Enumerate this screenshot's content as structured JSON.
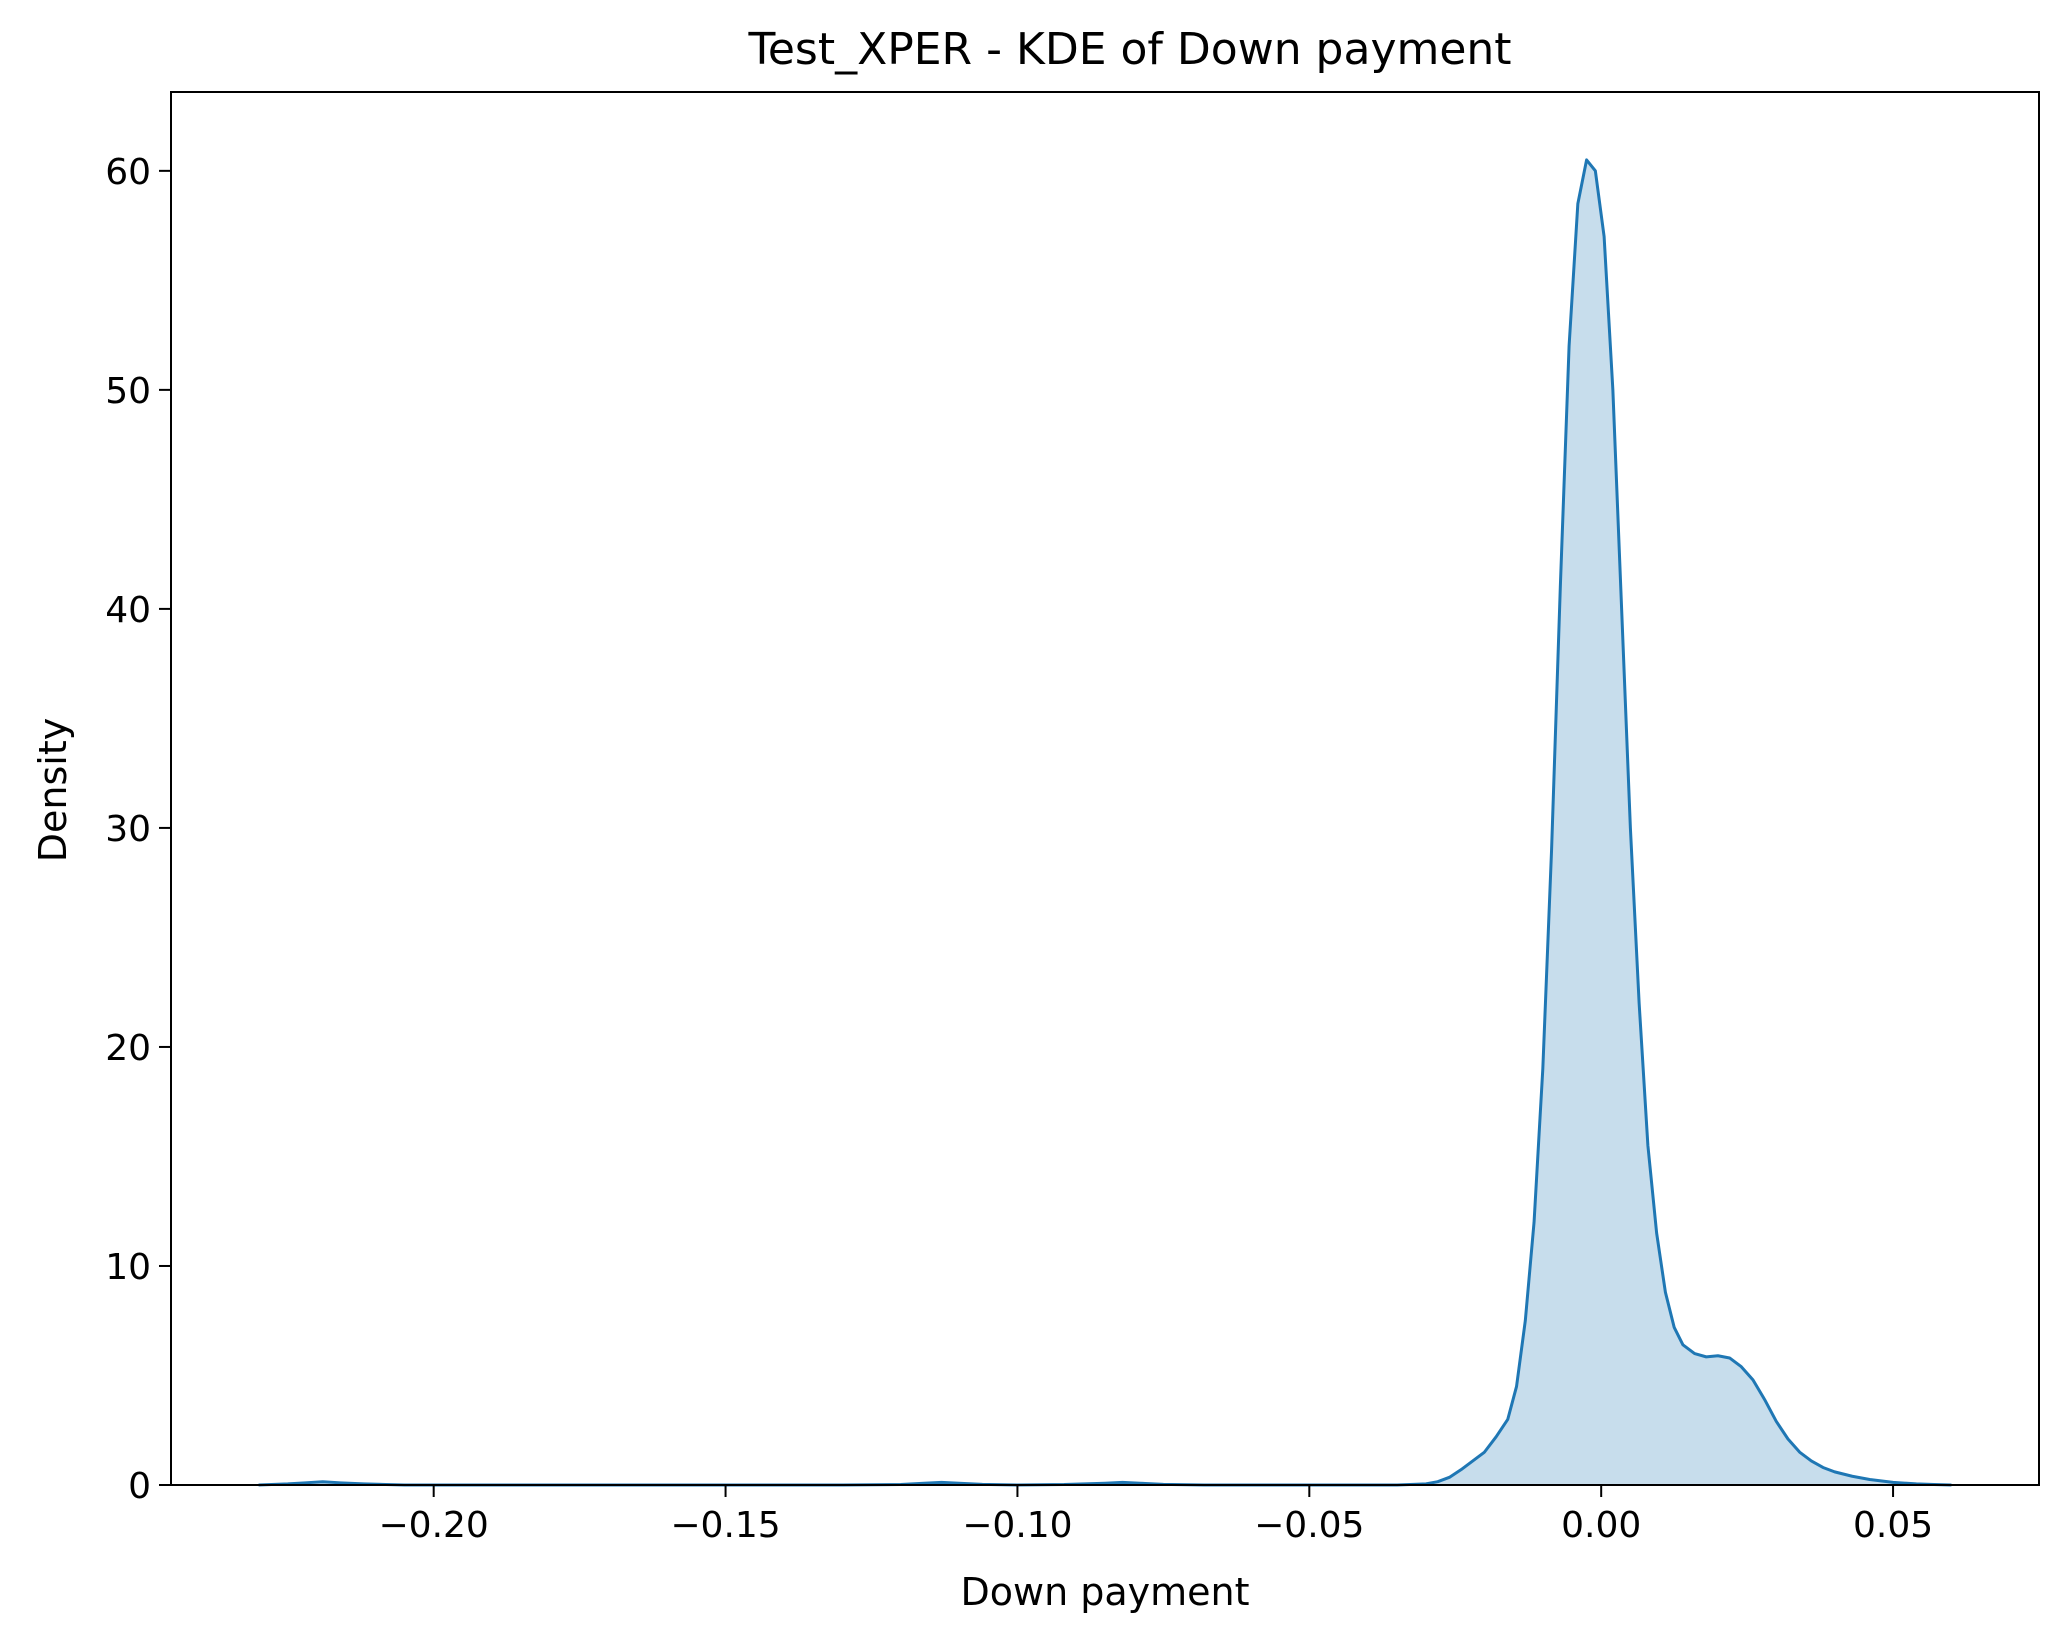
{
  "chart_data": {
    "type": "area",
    "title": "Test_XPER - KDE of Down payment",
    "xlabel": "Down payment",
    "ylabel": "Density",
    "xlim": [
      -0.245,
      0.075
    ],
    "ylim": [
      0,
      63.6
    ],
    "xticks": [
      -0.2,
      -0.15,
      -0.1,
      -0.05,
      0.0,
      0.05
    ],
    "xtick_labels": [
      "−0.20",
      "−0.15",
      "−0.10",
      "−0.05",
      "0.00",
      "0.05"
    ],
    "yticks": [
      0,
      10,
      20,
      30,
      40,
      50,
      60
    ],
    "ytick_labels": [
      "0",
      "10",
      "20",
      "30",
      "40",
      "50",
      "60"
    ],
    "grid": false,
    "legend": "none",
    "series": [
      {
        "color": "#1f77b4",
        "fill_color": "#1f77b4",
        "fill_opacity": 0.25,
        "x": [
          -0.23,
          -0.225,
          -0.222,
          -0.219,
          -0.216,
          -0.212,
          -0.205,
          -0.19,
          -0.17,
          -0.15,
          -0.13,
          -0.12,
          -0.116,
          -0.113,
          -0.11,
          -0.106,
          -0.1,
          -0.092,
          -0.085,
          -0.082,
          -0.079,
          -0.075,
          -0.068,
          -0.06,
          -0.045,
          -0.035,
          -0.03,
          -0.028,
          -0.026,
          -0.024,
          -0.022,
          -0.02,
          -0.018,
          -0.016,
          -0.0145,
          -0.013,
          -0.0115,
          -0.01,
          -0.0085,
          -0.007,
          -0.0055,
          -0.004,
          -0.0025,
          -0.001,
          0.0005,
          0.002,
          0.0035,
          0.005,
          0.0065,
          0.008,
          0.0095,
          0.011,
          0.0125,
          0.014,
          0.016,
          0.018,
          0.02,
          0.022,
          0.024,
          0.026,
          0.028,
          0.03,
          0.032,
          0.034,
          0.036,
          0.038,
          0.04,
          0.043,
          0.046,
          0.05,
          0.054,
          0.057,
          0.06
        ],
        "y": [
          0.0,
          0.05,
          0.1,
          0.15,
          0.1,
          0.05,
          0.0,
          0.0,
          0.0,
          0.0,
          0.0,
          0.02,
          0.08,
          0.12,
          0.08,
          0.03,
          0.0,
          0.02,
          0.08,
          0.12,
          0.08,
          0.03,
          0.0,
          0.0,
          0.0,
          0.0,
          0.05,
          0.15,
          0.35,
          0.7,
          1.1,
          1.5,
          2.2,
          3.0,
          4.5,
          7.5,
          12.0,
          19.0,
          29.0,
          41.0,
          52.0,
          58.5,
          60.5,
          60.0,
          57.0,
          50.0,
          40.0,
          30.0,
          22.0,
          15.5,
          11.5,
          8.8,
          7.2,
          6.4,
          6.0,
          5.85,
          5.9,
          5.8,
          5.4,
          4.8,
          3.9,
          2.9,
          2.1,
          1.5,
          1.1,
          0.8,
          0.6,
          0.4,
          0.25,
          0.12,
          0.05,
          0.02,
          0.0
        ]
      }
    ]
  }
}
